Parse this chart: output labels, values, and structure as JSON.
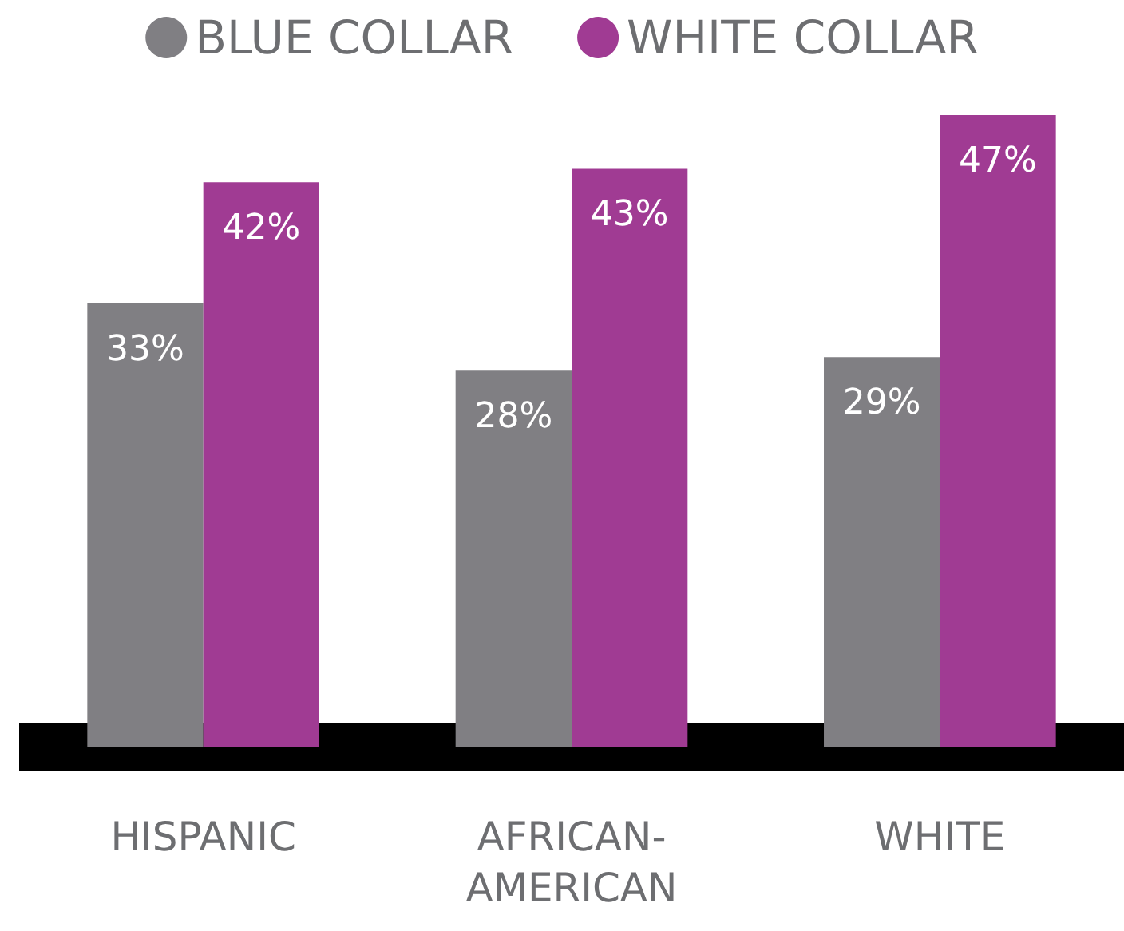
{
  "chart_data": {
    "type": "bar",
    "categories": [
      "HISPANIC",
      "AFRICAN-AMERICAN",
      "WHITE"
    ],
    "series": [
      {
        "name": "BLUE COLLAR",
        "color": "#807f83",
        "values": [
          33,
          28,
          29
        ],
        "value_labels": [
          "33%",
          "28%",
          "29%"
        ]
      },
      {
        "name": "WHITE COLLAR",
        "color": "#a03b93",
        "values": [
          42,
          43,
          47
        ],
        "value_labels": [
          "42%",
          "43%",
          "47%"
        ]
      }
    ],
    "legend": "top"
  }
}
